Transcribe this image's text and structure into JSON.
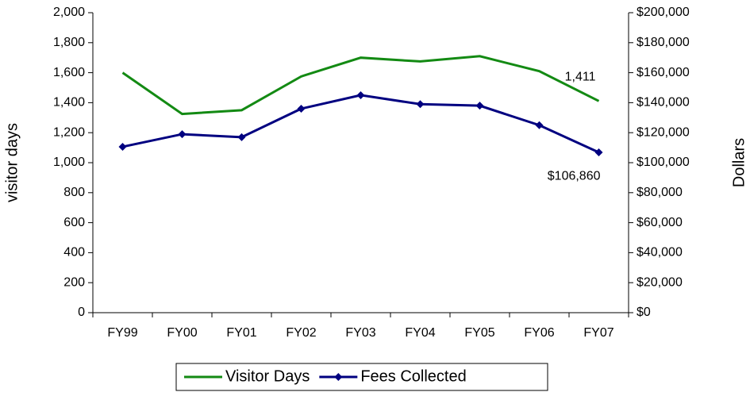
{
  "chart_data": {
    "type": "line",
    "categories": [
      "FY99",
      "FY00",
      "FY01",
      "FY02",
      "FY03",
      "FY04",
      "FY05",
      "FY06",
      "FY07"
    ],
    "y_label": "visitor days",
    "y2_label": "Dollars",
    "ylim": [
      0,
      2000
    ],
    "yticks": [
      0,
      200,
      400,
      600,
      800,
      {
        "value": 1000,
        "label": "1,000"
      },
      {
        "value": 1200,
        "label": "1,200"
      },
      {
        "value": 1400,
        "label": "1,400"
      },
      {
        "value": 1600,
        "label": "1,600"
      },
      {
        "value": 1800,
        "label": "1,800"
      },
      {
        "value": 2000,
        "label": "2,000"
      }
    ],
    "y2lim": [
      0,
      200000
    ],
    "y2ticks": [
      {
        "value": 0,
        "label": "$0"
      },
      {
        "value": 20000,
        "label": "$20,000"
      },
      {
        "value": 40000,
        "label": "$40,000"
      },
      {
        "value": 60000,
        "label": "$60,000"
      },
      {
        "value": 80000,
        "label": "$80,000"
      },
      {
        "value": 100000,
        "label": "$100,000"
      },
      {
        "value": 120000,
        "label": "$120,000"
      },
      {
        "value": 140000,
        "label": "$140,000"
      },
      {
        "value": 160000,
        "label": "$160,000"
      },
      {
        "value": 180000,
        "label": "$180,000"
      },
      {
        "value": 200000,
        "label": "$200,000"
      }
    ],
    "legend": "bottom",
    "series": [
      {
        "name": "Visitor Days",
        "color": "#138a13",
        "marker": "none",
        "values": [
          1600,
          1325,
          1350,
          1575,
          1700,
          1675,
          1710,
          1610,
          1411
        ],
        "value_labels": [
          null,
          null,
          null,
          null,
          null,
          null,
          null,
          null,
          "1,411"
        ]
      },
      {
        "name": "Fees Collected",
        "color": "#000080",
        "marker": "diamond",
        "axis": "y2",
        "values": [
          110600,
          119000,
          117000,
          136000,
          145000,
          139000,
          138000,
          125000,
          106860
        ],
        "value_labels": [
          null,
          null,
          null,
          null,
          null,
          null,
          null,
          null,
          "$106,860"
        ]
      }
    ]
  }
}
